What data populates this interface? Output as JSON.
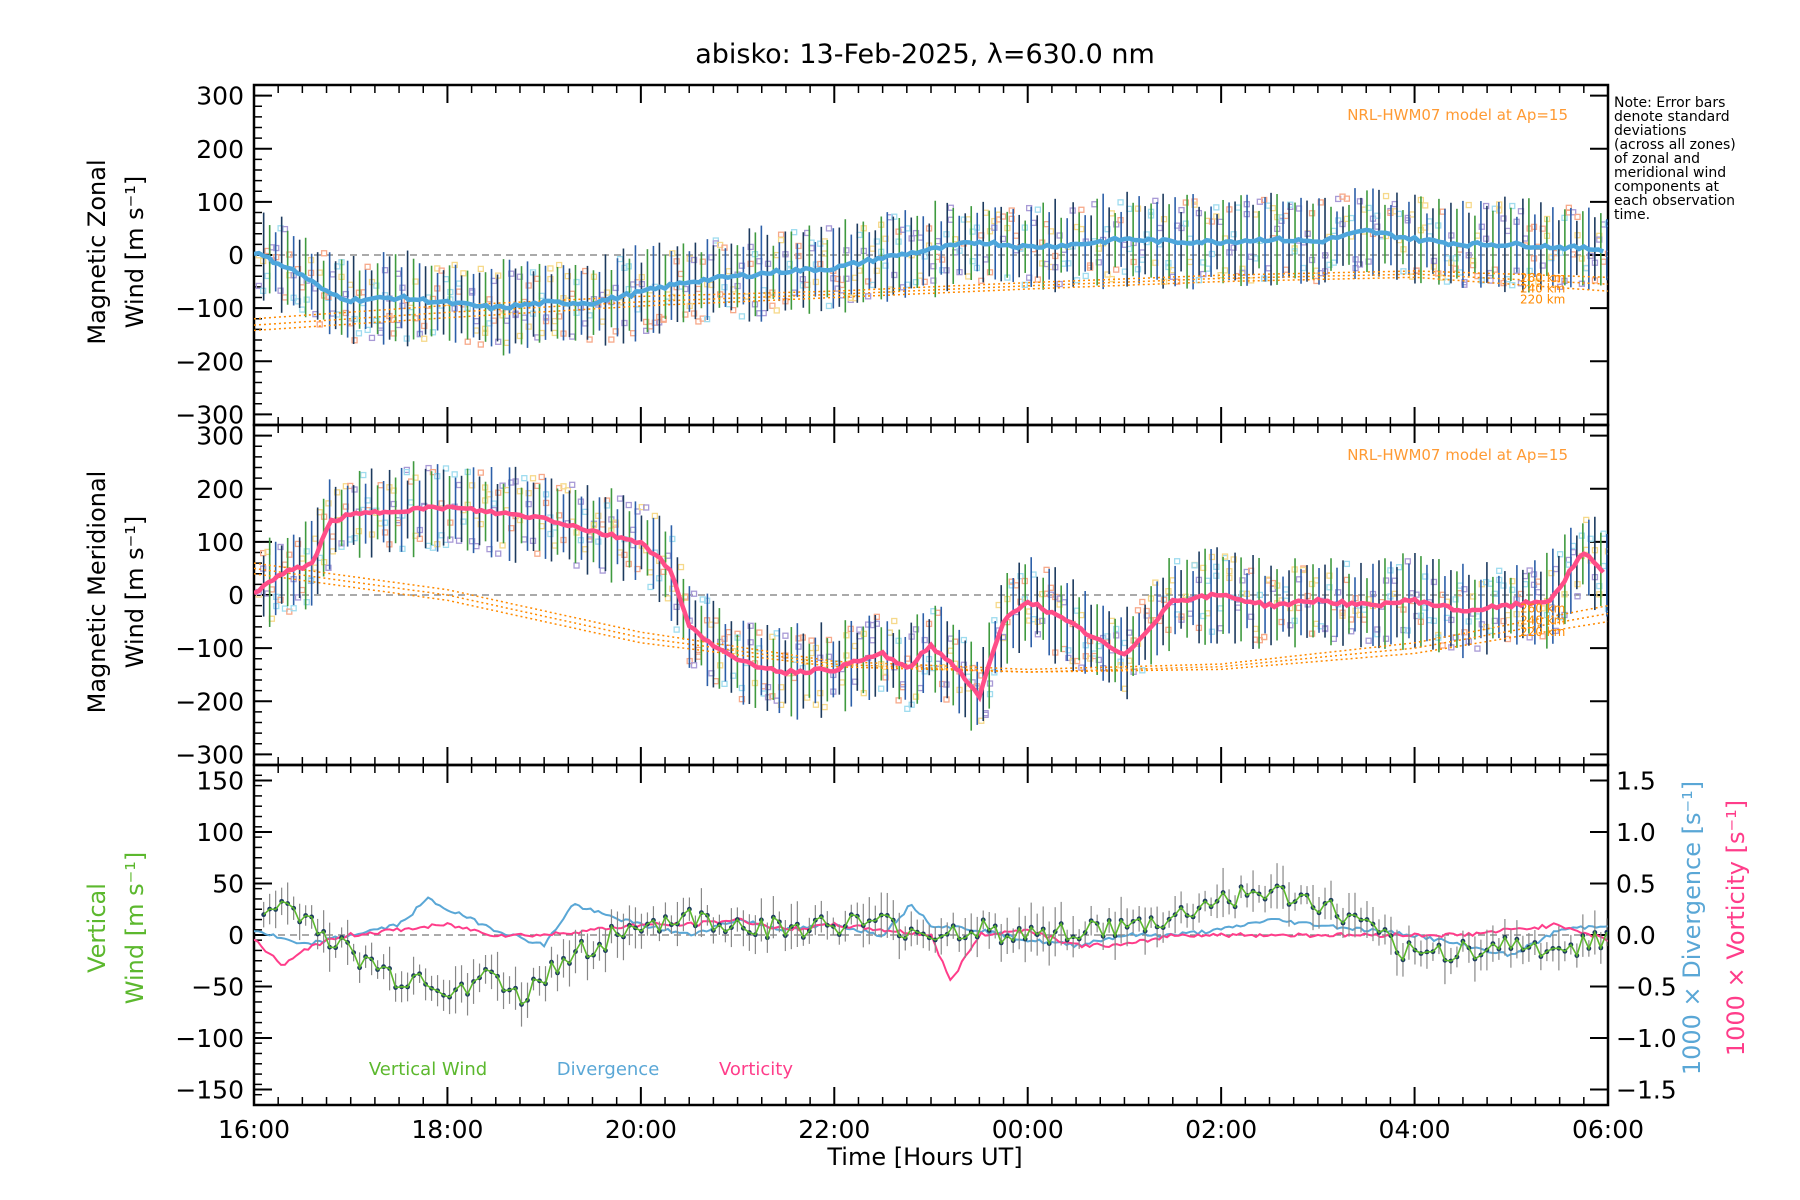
{
  "title": "abisko: 13-Feb-2025, λ=630.0 nm",
  "note": [
    "Note: Error bars",
    "denote standard",
    "deviations",
    "(across all zones)",
    "of zonal and",
    "meridional wind",
    "components at",
    "each observation",
    "time."
  ],
  "colors": {
    "zonal_mean": "#4ea6dc",
    "meridional_mean": "#ff4d88",
    "vertical": "#5cb82e",
    "divergence": "#5aa7d6",
    "vorticity": "#ff3d8a",
    "model": "#ff8a00",
    "model_label": "#ff9a33",
    "errorbar_dark": "#1c3a5e",
    "errorbar_green": "#3f9a3f",
    "errorbar_blue": "#2c5fa8",
    "zone_lilac": "#a89ad6",
    "zone_salmon": "#f7a98a",
    "zone_yellow": "#f6d98a",
    "zone_cyan": "#9fdcef"
  },
  "chart_data": [
    {
      "type": "line",
      "name": "zonal",
      "ylabel": [
        "Magnetic Zonal",
        "Wind [m s⁻¹]"
      ],
      "ylim": [
        -320,
        320
      ],
      "yticks": [
        300,
        200,
        100,
        0,
        -100,
        -200,
        -300
      ],
      "model_label": "NRL-HWM07 model at Ap=15",
      "model_heights": [
        "260 km",
        "240 km",
        "220 km"
      ],
      "model": [
        {
          "height": "260 km",
          "x": [
            0,
            2,
            4,
            6,
            8,
            10,
            12,
            14
          ],
          "y": [
            -120,
            -95,
            -78,
            -68,
            -52,
            -38,
            -30,
            -42
          ]
        },
        {
          "height": "240 km",
          "x": [
            0,
            2,
            4,
            6,
            8,
            10,
            12,
            14
          ],
          "y": [
            -132,
            -108,
            -88,
            -74,
            -58,
            -44,
            -36,
            -55
          ]
        },
        {
          "height": "220 km",
          "x": [
            0,
            2,
            4,
            6,
            8,
            10,
            12,
            14
          ],
          "y": [
            -142,
            -118,
            -96,
            -80,
            -64,
            -50,
            -42,
            -68
          ]
        }
      ],
      "mean": {
        "x": [
          0,
          0.25,
          0.5,
          0.75,
          1.0,
          1.5,
          2.0,
          2.5,
          3.0,
          3.5,
          4.0,
          4.5,
          5.0,
          5.5,
          6.0,
          6.5,
          7.0,
          7.5,
          8.0,
          8.5,
          9.0,
          9.5,
          10.0,
          10.5,
          11.0,
          11.5,
          12.0,
          12.5,
          13.0,
          13.5,
          14.0
        ],
        "y": [
          5,
          -15,
          -38,
          -70,
          -85,
          -80,
          -90,
          -100,
          -90,
          -90,
          -70,
          -50,
          -40,
          -30,
          -25,
          -5,
          10,
          25,
          15,
          20,
          30,
          25,
          25,
          30,
          25,
          45,
          30,
          20,
          20,
          15,
          10
        ]
      },
      "spread": 70
    },
    {
      "type": "line",
      "name": "meridional",
      "ylabel": [
        "Magnetic Meridional",
        "Wind [m s⁻¹]"
      ],
      "ylim": [
        -320,
        320
      ],
      "yticks": [
        300,
        200,
        100,
        0,
        -100,
        -200,
        -300
      ],
      "model_label": "NRL-HWM07 model at Ap=15",
      "model_heights": [
        "260 km",
        "240 km",
        "220 km"
      ],
      "model": [
        {
          "height": "260 km",
          "x": [
            0,
            2,
            4,
            6,
            8,
            10,
            12,
            14
          ],
          "y": [
            60,
            10,
            -70,
            -125,
            -140,
            -130,
            -90,
            -20
          ]
        },
        {
          "height": "240 km",
          "x": [
            0,
            2,
            4,
            6,
            8,
            10,
            12,
            14
          ],
          "y": [
            50,
            0,
            -80,
            -130,
            -145,
            -135,
            -100,
            -35
          ]
        },
        {
          "height": "220 km",
          "x": [
            0,
            2,
            4,
            6,
            8,
            10,
            12,
            14
          ],
          "y": [
            40,
            -10,
            -90,
            -135,
            -145,
            -140,
            -110,
            -50
          ]
        }
      ],
      "mean": {
        "x": [
          0,
          0.3,
          0.6,
          0.8,
          1.0,
          1.5,
          2.0,
          2.5,
          3.0,
          3.5,
          4.0,
          4.3,
          4.5,
          5.0,
          5.5,
          6.0,
          6.5,
          6.75,
          7.0,
          7.25,
          7.5,
          7.75,
          8.0,
          8.5,
          9.0,
          9.5,
          10.0,
          10.5,
          11.0,
          11.5,
          12.0,
          12.5,
          13.0,
          13.4,
          13.75,
          14.0
        ],
        "y": [
          5,
          40,
          60,
          140,
          150,
          160,
          165,
          155,
          145,
          120,
          100,
          50,
          -60,
          -125,
          -145,
          -140,
          -110,
          -140,
          -95,
          -135,
          -190,
          -50,
          -10,
          -60,
          -115,
          -10,
          0,
          -20,
          -10,
          -20,
          -10,
          -30,
          -20,
          -10,
          80,
          35
        ]
      },
      "spread": 70
    },
    {
      "type": "line",
      "name": "vertical",
      "ylim": [
        -165,
        165
      ],
      "yticks": [
        150,
        100,
        50,
        0,
        -50,
        -100,
        -150
      ],
      "ylabel": [
        "Vertical",
        "Wind [m s⁻¹]"
      ],
      "y2lim": [
        -1.65,
        1.65
      ],
      "y2ticks": [
        "1.5",
        "1.0",
        "0.5",
        "0.0",
        "−0.5",
        "−1.0",
        "−1.5"
      ],
      "y2labels": [
        "1000 × Divergence [s⁻¹]",
        "1000 × Vorticity [s⁻¹]"
      ],
      "legend": [
        "Vertical Wind",
        "Divergence",
        "Vorticity"
      ],
      "vertical": {
        "x": [
          0,
          0.25,
          0.5,
          0.75,
          1.0,
          1.25,
          1.5,
          1.75,
          2.0,
          2.25,
          2.5,
          2.75,
          3.0,
          3.25,
          3.5,
          3.75,
          4.0,
          4.5,
          5.0,
          5.5,
          6.0,
          6.5,
          7.0,
          7.5,
          8.0,
          8.5,
          9.0,
          9.5,
          10.0,
          10.5,
          11.0,
          11.5,
          12.0,
          12.5,
          13.0,
          13.5,
          14.0
        ],
        "y": [
          10,
          30,
          20,
          0,
          -20,
          -30,
          -45,
          -40,
          -55,
          -45,
          -40,
          -65,
          -40,
          -20,
          -10,
          0,
          10,
          15,
          10,
          5,
          10,
          10,
          0,
          5,
          0,
          5,
          5,
          15,
          35,
          40,
          30,
          5,
          -20,
          -15,
          -10,
          -15,
          0
        ]
      },
      "divergence": {
        "x": [
          0,
          0.5,
          1.0,
          1.5,
          1.8,
          2.0,
          2.5,
          3.0,
          3.3,
          3.6,
          4.0,
          4.5,
          5.0,
          5.5,
          6.0,
          6.5,
          6.8,
          7.0,
          7.5,
          8.0,
          8.5,
          9.0,
          9.5,
          10.0,
          10.5,
          11.0,
          11.5,
          12.0,
          12.5,
          13.0,
          13.5,
          14.0
        ],
        "y": [
          0.05,
          -0.1,
          0.0,
          0.1,
          0.35,
          0.25,
          0.05,
          -0.1,
          0.3,
          0.2,
          0.1,
          0.0,
          0.15,
          0.05,
          0.1,
          0.0,
          0.3,
          0.1,
          0.05,
          -0.05,
          -0.1,
          0.0,
          0.0,
          0.05,
          0.15,
          0.1,
          0.05,
          0.0,
          -0.1,
          -0.2,
          0.05,
          0.1
        ]
      },
      "vorticity": {
        "x": [
          0,
          0.3,
          0.6,
          1.0,
          1.5,
          2.0,
          2.5,
          3.0,
          3.5,
          4.0,
          4.5,
          5.0,
          5.5,
          6.0,
          6.5,
          7.0,
          7.2,
          7.5,
          8.0,
          8.5,
          9.0,
          9.5,
          10.0,
          10.5,
          11.0,
          11.5,
          12.0,
          12.5,
          13.0,
          13.5,
          14.0
        ],
        "y": [
          -0.05,
          -0.3,
          -0.1,
          0.0,
          0.05,
          0.1,
          0.0,
          0.0,
          0.05,
          0.1,
          0.1,
          0.15,
          0.05,
          0.1,
          0.05,
          0.0,
          -0.45,
          0.0,
          0.05,
          -0.1,
          -0.1,
          0.0,
          0.0,
          0.0,
          0.0,
          0.0,
          0.0,
          0.0,
          0.05,
          0.1,
          -0.05
        ]
      }
    }
  ],
  "x_axis": {
    "range_hours": [
      0,
      14
    ],
    "ticks": [
      "16:00",
      "18:00",
      "20:00",
      "22:00",
      "00:00",
      "02:00",
      "04:00",
      "06:00"
    ],
    "label": "Time [Hours UT]"
  }
}
